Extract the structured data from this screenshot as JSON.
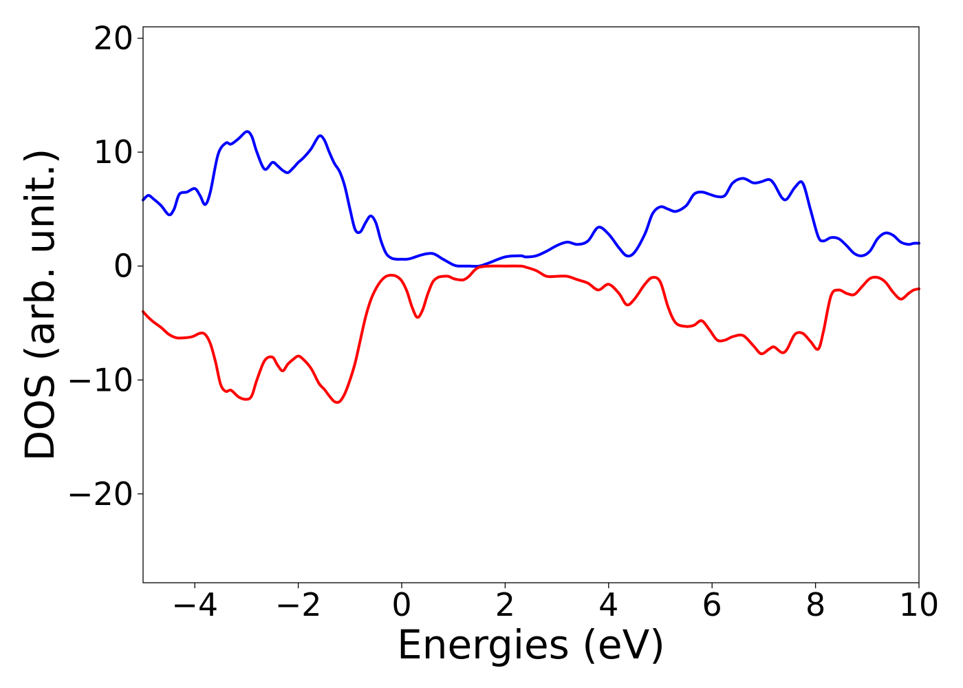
{
  "chart_data": {
    "type": "line",
    "title": "",
    "xlabel": "Energies (eV)",
    "ylabel": "DOS (arb. unit.)",
    "xlim": [
      -5,
      10
    ],
    "ylim": [
      -27.8,
      21
    ],
    "xticks": [
      -4,
      -2,
      0,
      2,
      4,
      6,
      8,
      10
    ],
    "xtick_labels": [
      "−4",
      "−2",
      "0",
      "2",
      "4",
      "6",
      "8",
      "10"
    ],
    "yticks": [
      -20,
      -10,
      0,
      10,
      20
    ],
    "ytick_labels": [
      "−20",
      "−10",
      "0",
      "10",
      "20"
    ],
    "grid": false,
    "legend": "none",
    "series": [
      {
        "color": "#0000ff",
        "x": [
          -5.0,
          -4.9,
          -4.8,
          -4.65,
          -4.5,
          -4.4,
          -4.3,
          -4.15,
          -4.0,
          -3.9,
          -3.8,
          -3.7,
          -3.55,
          -3.4,
          -3.3,
          -3.15,
          -3.0,
          -2.9,
          -2.8,
          -2.65,
          -2.5,
          -2.4,
          -2.3,
          -2.2,
          -2.1,
          -2.0,
          -1.9,
          -1.75,
          -1.6,
          -1.5,
          -1.4,
          -1.3,
          -1.2,
          -1.1,
          -1.0,
          -0.9,
          -0.8,
          -0.7,
          -0.6,
          -0.5,
          -0.4,
          -0.3,
          -0.2,
          -0.1,
          0.0,
          0.1,
          0.2,
          0.4,
          0.6,
          0.8,
          1.0,
          1.1,
          1.2,
          1.3,
          1.5,
          1.7,
          2.0,
          2.3,
          2.4,
          2.6,
          2.8,
          3.0,
          3.2,
          3.4,
          3.6,
          3.8,
          4.0,
          4.2,
          4.35,
          4.5,
          4.7,
          4.85,
          5.0,
          5.15,
          5.3,
          5.5,
          5.65,
          5.8,
          5.95,
          6.1,
          6.25,
          6.4,
          6.6,
          6.8,
          6.95,
          7.1,
          7.2,
          7.35,
          7.45,
          7.6,
          7.75,
          7.9,
          8.05,
          8.15,
          8.3,
          8.45,
          8.6,
          8.75,
          8.9,
          9.05,
          9.2,
          9.35,
          9.5,
          9.65,
          9.8,
          9.9,
          10.0
        ],
        "y": [
          5.8,
          6.2,
          5.9,
          5.3,
          4.5,
          5.0,
          6.3,
          6.5,
          6.8,
          6.2,
          5.4,
          6.5,
          9.8,
          10.8,
          10.7,
          11.2,
          11.8,
          11.4,
          10.0,
          8.5,
          9.1,
          8.8,
          8.4,
          8.2,
          8.6,
          9.1,
          9.5,
          10.3,
          11.4,
          11.1,
          10.0,
          9.0,
          8.3,
          7.0,
          5.0,
          3.2,
          3.0,
          3.8,
          4.4,
          3.8,
          2.2,
          1.1,
          0.7,
          0.6,
          0.6,
          0.6,
          0.7,
          1.0,
          1.1,
          0.6,
          0.1,
          0.0,
          0.0,
          0.0,
          0.0,
          0.3,
          0.8,
          0.9,
          0.8,
          0.9,
          1.3,
          1.8,
          2.1,
          1.9,
          2.2,
          3.4,
          2.8,
          1.6,
          0.9,
          1.2,
          2.8,
          4.6,
          5.2,
          5.0,
          4.8,
          5.3,
          6.3,
          6.5,
          6.3,
          6.1,
          6.2,
          7.3,
          7.7,
          7.3,
          7.4,
          7.6,
          7.2,
          6.0,
          5.9,
          6.9,
          7.3,
          5.0,
          2.6,
          2.2,
          2.5,
          2.4,
          1.8,
          1.1,
          0.9,
          1.3,
          2.4,
          2.9,
          2.7,
          2.1,
          1.9,
          2.0,
          2.0
        ]
      },
      {
        "color": "#ff0000",
        "x": [
          -5.0,
          -4.9,
          -4.8,
          -4.65,
          -4.5,
          -4.35,
          -4.2,
          -4.05,
          -3.9,
          -3.8,
          -3.7,
          -3.6,
          -3.5,
          -3.4,
          -3.3,
          -3.15,
          -3.0,
          -2.9,
          -2.8,
          -2.65,
          -2.5,
          -2.4,
          -2.3,
          -2.2,
          -2.1,
          -2.0,
          -1.9,
          -1.75,
          -1.6,
          -1.5,
          -1.4,
          -1.3,
          -1.2,
          -1.1,
          -1.0,
          -0.9,
          -0.8,
          -0.7,
          -0.6,
          -0.5,
          -0.4,
          -0.3,
          -0.2,
          -0.1,
          0.0,
          0.1,
          0.2,
          0.3,
          0.4,
          0.5,
          0.6,
          0.7,
          0.8,
          0.9,
          1.0,
          1.1,
          1.2,
          1.3,
          1.4,
          1.5,
          1.7,
          2.0,
          2.3,
          2.4,
          2.6,
          2.8,
          3.0,
          3.2,
          3.4,
          3.6,
          3.8,
          4.0,
          4.2,
          4.35,
          4.5,
          4.7,
          4.85,
          5.0,
          5.15,
          5.3,
          5.5,
          5.65,
          5.8,
          5.95,
          6.1,
          6.25,
          6.4,
          6.6,
          6.8,
          6.95,
          7.1,
          7.2,
          7.35,
          7.45,
          7.6,
          7.75,
          7.9,
          8.05,
          8.15,
          8.3,
          8.45,
          8.6,
          8.75,
          8.9,
          9.05,
          9.2,
          9.35,
          9.5,
          9.65,
          9.8,
          9.9,
          10.0
        ],
        "y": [
          -4.0,
          -4.5,
          -4.9,
          -5.4,
          -6.0,
          -6.3,
          -6.3,
          -6.2,
          -5.9,
          -6.0,
          -6.8,
          -8.4,
          -10.4,
          -11.0,
          -10.9,
          -11.5,
          -11.7,
          -11.4,
          -10.0,
          -8.3,
          -8.0,
          -8.7,
          -9.2,
          -8.6,
          -8.2,
          -7.9,
          -8.2,
          -9.0,
          -10.3,
          -10.8,
          -11.4,
          -11.9,
          -11.9,
          -11.2,
          -10.0,
          -8.5,
          -6.5,
          -4.5,
          -3.0,
          -2.0,
          -1.3,
          -0.9,
          -0.8,
          -0.9,
          -1.3,
          -2.2,
          -3.6,
          -4.5,
          -3.9,
          -2.5,
          -1.4,
          -1.0,
          -0.9,
          -0.9,
          -1.1,
          -1.2,
          -1.2,
          -0.9,
          -0.4,
          -0.1,
          0.0,
          0.0,
          0.0,
          -0.1,
          -0.4,
          -0.9,
          -0.9,
          -0.9,
          -1.2,
          -1.5,
          -2.1,
          -1.6,
          -2.4,
          -3.4,
          -2.9,
          -1.6,
          -1.0,
          -1.4,
          -3.6,
          -5.0,
          -5.3,
          -5.2,
          -4.8,
          -5.6,
          -6.5,
          -6.5,
          -6.2,
          -6.1,
          -7.0,
          -7.7,
          -7.3,
          -7.1,
          -7.6,
          -7.3,
          -6.0,
          -5.9,
          -6.6,
          -7.3,
          -5.8,
          -2.6,
          -2.1,
          -2.4,
          -2.5,
          -1.8,
          -1.1,
          -1.0,
          -1.4,
          -2.3,
          -2.9,
          -2.4,
          -2.1,
          -2.0
        ]
      }
    ]
  }
}
